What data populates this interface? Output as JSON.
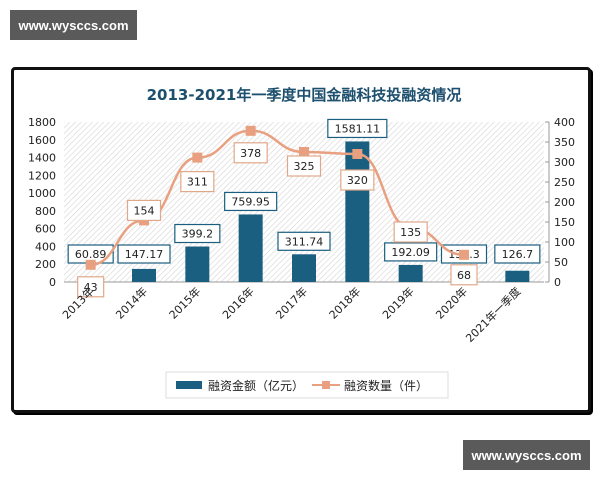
{
  "watermarks": {
    "top_left": "www.wysccs.com",
    "bottom_right": "www.wysccs.com"
  },
  "colors": {
    "bar": "#1a5e80",
    "line": "#e8a080",
    "title": "#1d4f6e",
    "bar_label_border": "#1a5e80",
    "line_label_border": "#e0a888",
    "hatch": "#d8d8d8"
  },
  "chart_data": {
    "type": "bar+line",
    "title": "2013-2021年一季度中国金融科技投融资情况",
    "categories": [
      "2013年",
      "2014年",
      "2015年",
      "2016年",
      "2017年",
      "2018年",
      "2019年",
      "2020年",
      "2021年一季度"
    ],
    "series": [
      {
        "name": "融资金额（亿元）",
        "type": "bar",
        "axis": "left",
        "values": [
          60.89,
          147.17,
          399.2,
          759.95,
          311.74,
          1581.11,
          192.09,
          138.3,
          126.7
        ]
      },
      {
        "name": "融资数量（件）",
        "type": "line",
        "axis": "right",
        "values": [
          43,
          154,
          311,
          378,
          325,
          320,
          135,
          68,
          null
        ]
      }
    ],
    "left_axis": {
      "ylim": [
        0,
        1800
      ],
      "ticks": [
        "0",
        "200",
        "400",
        "600",
        "800",
        "1000",
        "1200",
        "1400",
        "1600",
        "1800"
      ]
    },
    "right_axis": {
      "ylim": [
        0,
        400
      ],
      "ticks": [
        "0",
        "50",
        "100",
        "150",
        "200",
        "250",
        "300",
        "350",
        "400"
      ]
    },
    "bar_labels": [
      "60.89",
      "147.17",
      "399.2",
      "759.95",
      "311.74",
      "1581.11",
      "192.09",
      "138.3",
      "126.7"
    ],
    "line_labels": [
      "43",
      "154",
      "311",
      "378",
      "325",
      "320",
      "135",
      "68"
    ],
    "legend": {
      "position": "bottom",
      "items": [
        "融资金额（亿元）",
        "融资数量（件）"
      ]
    },
    "grid": false,
    "xlabel": "",
    "ylabel": ""
  }
}
